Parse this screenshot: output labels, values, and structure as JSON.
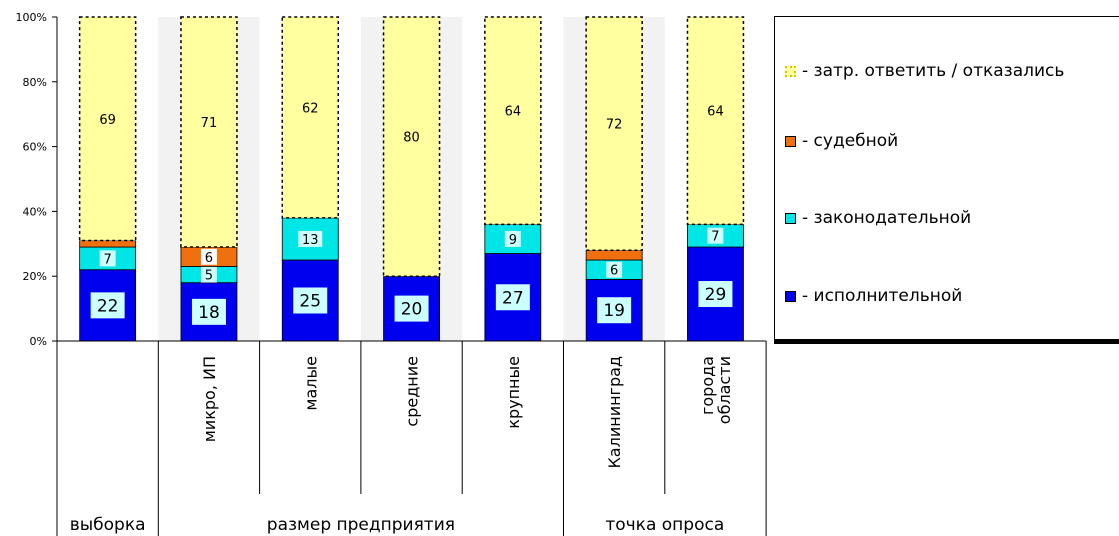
{
  "chart_data": {
    "type": "bar",
    "stacked": true,
    "percent_axis": true,
    "y_ticks": [
      "0%",
      "20%",
      "40%",
      "60%",
      "80%",
      "100%"
    ],
    "ylim": [
      0,
      100
    ],
    "categories": [
      "",
      "микро, ИП",
      "малые",
      "средние",
      "крупные",
      "Калининград",
      "города области"
    ],
    "groups": [
      {
        "label": "выборка",
        "span": 1
      },
      {
        "label": "размер предприятия",
        "span": 4
      },
      {
        "label": "точка опроса",
        "span": 2
      }
    ],
    "series": [
      {
        "name": "- исполнительной",
        "color": "#0000ee",
        "values": [
          22,
          18,
          25,
          20,
          27,
          19,
          29
        ],
        "labels": [
          "22",
          "18",
          "25",
          "20",
          "27",
          "19",
          "29"
        ]
      },
      {
        "name": "- законодательной",
        "color": "#00e5e5",
        "values": [
          7,
          5,
          13,
          0,
          9,
          6,
          7
        ],
        "labels": [
          "7",
          "5",
          "13",
          "",
          "9",
          "6",
          "7"
        ]
      },
      {
        "name": "- судебной",
        "color": "#f07010",
        "values": [
          2,
          6,
          0,
          0,
          0,
          3,
          0
        ],
        "labels": [
          "",
          "6",
          "",
          "",
          "",
          "",
          ""
        ]
      },
      {
        "name": "- затр. ответить / отказались",
        "color": "#ffffa0",
        "values": [
          69,
          71,
          62,
          80,
          64,
          72,
          64
        ],
        "labels": [
          "69",
          "71",
          "62",
          "80",
          "64",
          "72",
          "64"
        ]
      }
    ],
    "grid": false,
    "legend_position": "right"
  }
}
